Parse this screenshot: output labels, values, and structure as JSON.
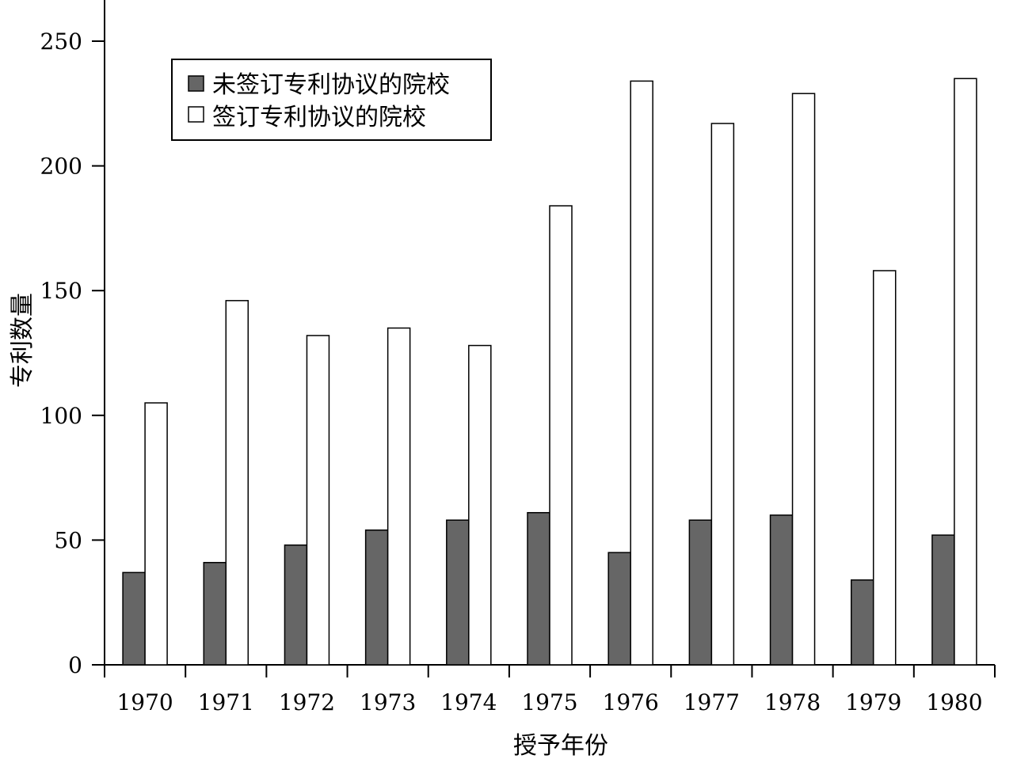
{
  "chart_data": {
    "type": "bar",
    "categories": [
      "1970",
      "1971",
      "1972",
      "1973",
      "1974",
      "1975",
      "1976",
      "1977",
      "1978",
      "1979",
      "1980"
    ],
    "series": [
      {
        "name": "未签订专利协议的院校",
        "values": [
          37,
          41,
          48,
          54,
          58,
          61,
          45,
          58,
          60,
          34,
          52
        ],
        "color": "#666666"
      },
      {
        "name": "签订专利协议的院校",
        "values": [
          105,
          146,
          132,
          135,
          128,
          184,
          234,
          217,
          229,
          158,
          235
        ],
        "color": "#ffffff"
      }
    ],
    "xlabel": "授予年份",
    "ylabel": "专利数量",
    "ylim": [
      0,
      250
    ],
    "yticks": [
      0,
      50,
      100,
      150,
      200,
      250
    ],
    "grid": false,
    "legend": "top-left"
  }
}
